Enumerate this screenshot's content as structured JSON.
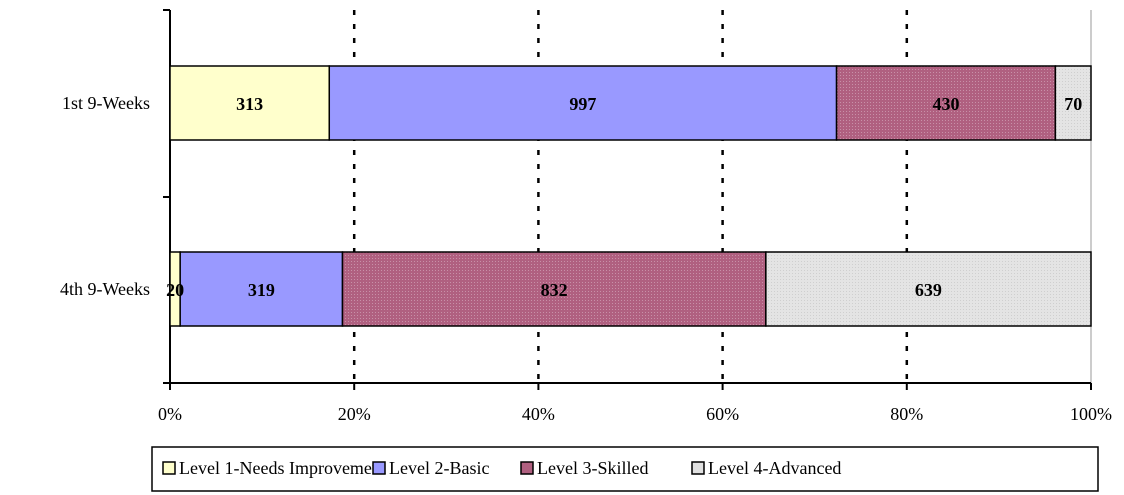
{
  "chart_data": {
    "type": "bar",
    "orientation": "horizontal",
    "stacked": "percent",
    "categories": [
      "1st 9-Weeks",
      "4th 9-Weeks"
    ],
    "series": [
      {
        "name": "Level 1-Needs Improvement",
        "values": [
          313,
          20
        ],
        "color": "#ffffcc"
      },
      {
        "name": "Level 2-Basic",
        "values": [
          997,
          319
        ],
        "color": "#9999ff"
      },
      {
        "name": "Level 3-Skilled",
        "values": [
          430,
          832
        ],
        "color": "#b06080"
      },
      {
        "name": "Level 4-Advanced",
        "values": [
          70,
          639
        ],
        "color": "#e0e0e0"
      }
    ],
    "x_ticks": [
      "0%",
      "20%",
      "40%",
      "60%",
      "80%",
      "100%"
    ],
    "xlim": [
      0,
      100
    ],
    "grid": "vertical dotted",
    "legend_position": "bottom"
  }
}
